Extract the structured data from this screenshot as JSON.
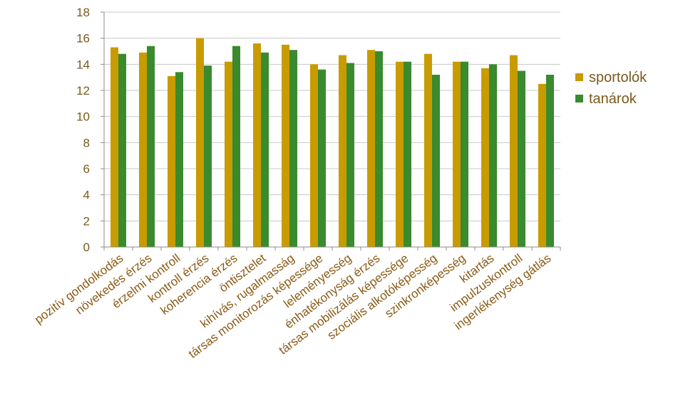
{
  "chart_data": {
    "type": "bar",
    "title": "",
    "xlabel": "",
    "ylabel": "",
    "ylim": [
      0,
      18
    ],
    "yticks": [
      0,
      2,
      4,
      6,
      8,
      10,
      12,
      14,
      16,
      18
    ],
    "grid": true,
    "legend_position": "right",
    "categories": [
      "pozitív gondolkodás",
      "növekedés érzés",
      "érzelmi kontroll",
      "kontroll érzés",
      "koherencia érzés",
      "öntisztelet",
      "kihívás, rugalmasság",
      "társas monitorozás képessége",
      "leleményesség",
      "énhatékonyság érzés",
      "társas mobilizálás képessége",
      "szociális alkotóképesség",
      "szinkronképesség",
      "kitartás",
      "impulzuskontroll",
      "ingerlékenység gátlás"
    ],
    "series": [
      {
        "name": "sportolók",
        "color": "#c89b00",
        "values": [
          15.3,
          14.9,
          13.1,
          16.0,
          14.2,
          15.6,
          15.5,
          14.0,
          14.7,
          15.1,
          14.2,
          14.8,
          14.2,
          13.7,
          14.7,
          12.5
        ]
      },
      {
        "name": "tanárok",
        "color": "#3a8a2e",
        "values": [
          14.8,
          15.4,
          13.4,
          13.9,
          15.4,
          14.9,
          15.1,
          13.6,
          14.1,
          15.0,
          14.2,
          13.2,
          14.2,
          14.0,
          13.5,
          13.2
        ]
      }
    ]
  }
}
